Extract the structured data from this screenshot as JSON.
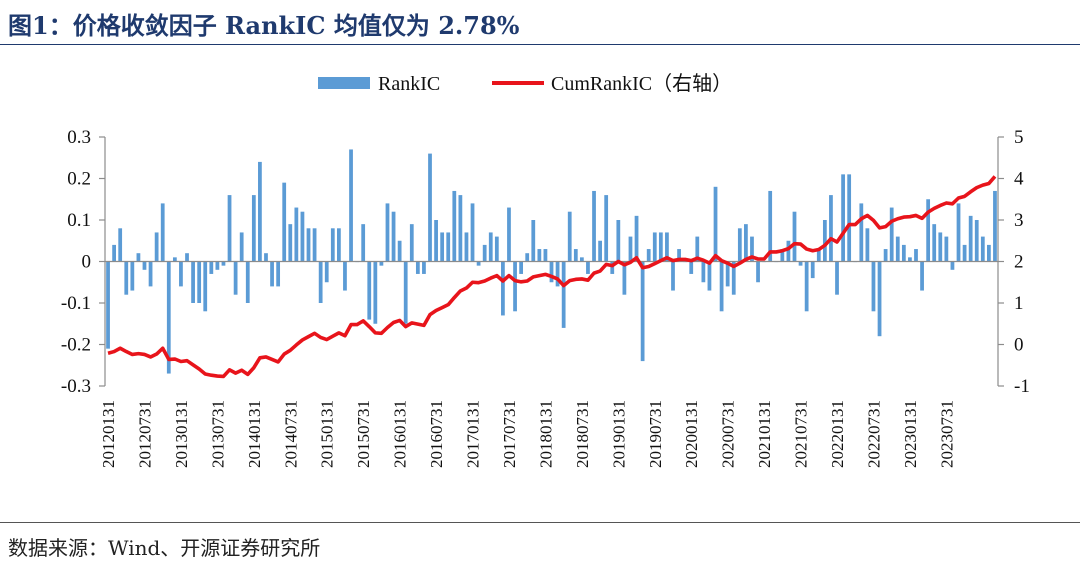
{
  "header": {
    "title": "图1：价格收敛因子 RankIC 均值仅为 2.78%"
  },
  "footer": {
    "source": "数据来源：Wind、开源证券研究所"
  },
  "colors": {
    "bar": "#5b9bd5",
    "line": "#e8141b",
    "title": "#1f3a6e"
  },
  "chart_data": {
    "type": "bar",
    "title": "",
    "legend": {
      "position": "top-center",
      "entries": [
        "RankIC",
        "CumRankIC（右轴）"
      ]
    },
    "left_axis": {
      "ylim": [
        -0.3,
        0.3
      ],
      "ticks": [
        "0.3",
        "0.2",
        "0.1",
        "0",
        "-0.1",
        "-0.2",
        "-0.3"
      ]
    },
    "right_axis": {
      "ylim": [
        -1,
        5
      ],
      "ticks": [
        "5",
        "4",
        "3",
        "2",
        "1",
        "0",
        "-1"
      ]
    },
    "x_tick_labels": [
      "20120131",
      "20120731",
      "20130131",
      "20130731",
      "20140131",
      "20140731",
      "20150131",
      "20150731",
      "20160131",
      "20160731",
      "20170131",
      "20170731",
      "20180131",
      "20180731",
      "20190131",
      "20190731",
      "20200131",
      "20200731",
      "20210131",
      "20210731",
      "20220131",
      "20220731",
      "20230131",
      "20230731"
    ],
    "grid": false,
    "series": [
      {
        "name": "RankIC",
        "axis": "left",
        "kind": "bar",
        "values": [
          -0.21,
          0.04,
          0.08,
          -0.08,
          -0.07,
          0.02,
          -0.02,
          -0.06,
          0.07,
          0.14,
          -0.27,
          0.01,
          -0.06,
          0.02,
          -0.1,
          -0.1,
          -0.12,
          -0.03,
          -0.02,
          -0.01,
          0.16,
          -0.08,
          0.07,
          -0.1,
          0.16,
          0.24,
          0.02,
          -0.06,
          -0.06,
          0.19,
          0.09,
          0.13,
          0.12,
          0.08,
          0.08,
          -0.1,
          -0.05,
          0.08,
          0.08,
          -0.07,
          0.27,
          0.0,
          0.09,
          -0.14,
          -0.15,
          -0.01,
          0.14,
          0.12,
          0.05,
          -0.15,
          0.09,
          -0.03,
          -0.03,
          0.26,
          0.1,
          0.07,
          0.07,
          0.17,
          0.16,
          0.07,
          0.14,
          -0.01,
          0.04,
          0.07,
          0.06,
          -0.13,
          0.13,
          -0.12,
          -0.03,
          0.02,
          0.1,
          0.03,
          0.03,
          -0.05,
          -0.06,
          -0.16,
          0.12,
          0.03,
          0.01,
          -0.03,
          0.17,
          0.05,
          0.16,
          -0.03,
          0.1,
          -0.08,
          0.06,
          0.11,
          -0.24,
          0.03,
          0.07,
          0.07,
          0.07,
          -0.07,
          0.03,
          0.0,
          -0.03,
          0.06,
          -0.05,
          -0.07,
          0.18,
          -0.12,
          -0.06,
          -0.08,
          0.08,
          0.09,
          0.06,
          -0.05,
          0.0,
          0.17,
          0.0,
          0.03,
          0.05,
          0.12,
          -0.01,
          -0.12,
          -0.04,
          0.03,
          0.1,
          0.16,
          -0.08,
          0.21,
          0.21,
          0.0,
          0.14,
          0.08,
          -0.12,
          -0.18,
          0.03,
          0.13,
          0.06,
          0.04,
          0.01,
          0.03,
          -0.07,
          0.15,
          0.09,
          0.07,
          0.06,
          -0.02,
          0.14,
          0.04,
          0.11,
          0.1,
          0.06,
          0.04,
          0.17
        ]
      },
      {
        "name": "CumRankIC（右轴）",
        "axis": "right",
        "kind": "line",
        "values": [
          -0.21,
          -0.17,
          -0.09,
          -0.17,
          -0.24,
          -0.22,
          -0.24,
          -0.3,
          -0.23,
          -0.09,
          -0.36,
          -0.35,
          -0.41,
          -0.39,
          -0.49,
          -0.59,
          -0.71,
          -0.74,
          -0.76,
          -0.77,
          -0.61,
          -0.69,
          -0.62,
          -0.72,
          -0.56,
          -0.32,
          -0.3,
          -0.36,
          -0.42,
          -0.23,
          -0.14,
          -0.01,
          0.11,
          0.19,
          0.27,
          0.17,
          0.12,
          0.2,
          0.28,
          0.21,
          0.48,
          0.48,
          0.57,
          0.43,
          0.28,
          0.27,
          0.41,
          0.53,
          0.58,
          0.43,
          0.52,
          0.49,
          0.46,
          0.72,
          0.82,
          0.89,
          0.96,
          1.13,
          1.29,
          1.36,
          1.5,
          1.49,
          1.53,
          1.6,
          1.66,
          1.53,
          1.66,
          1.54,
          1.51,
          1.53,
          1.63,
          1.66,
          1.69,
          1.64,
          1.58,
          1.42,
          1.54,
          1.57,
          1.58,
          1.55,
          1.72,
          1.77,
          1.93,
          1.9,
          2.0,
          1.92,
          1.98,
          2.09,
          1.85,
          1.88,
          1.95,
          2.02,
          2.09,
          2.02,
          2.05,
          2.05,
          2.02,
          2.08,
          2.03,
          1.96,
          2.14,
          2.02,
          1.96,
          1.88,
          1.96,
          2.05,
          2.11,
          2.06,
          2.06,
          2.23,
          2.23,
          2.26,
          2.31,
          2.43,
          2.42,
          2.3,
          2.26,
          2.29,
          2.39,
          2.55,
          2.47,
          2.68,
          2.89,
          2.89,
          3.03,
          3.11,
          2.99,
          2.81,
          2.84,
          2.97,
          3.03,
          3.07,
          3.08,
          3.11,
          3.04,
          3.19,
          3.28,
          3.35,
          3.41,
          3.39,
          3.53,
          3.57,
          3.68,
          3.78,
          3.84,
          3.88,
          4.05
        ]
      }
    ]
  }
}
